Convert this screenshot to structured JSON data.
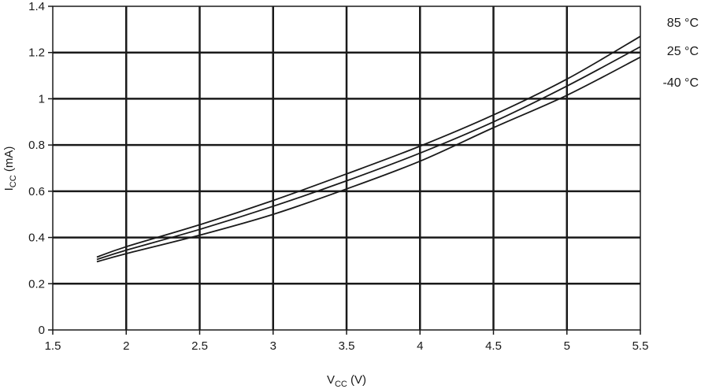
{
  "chart_data": {
    "type": "line",
    "title": "",
    "xlabel": {
      "main": "V",
      "sub": "CC",
      "unit": " (V)"
    },
    "ylabel": {
      "main": "I",
      "sub": "CC",
      "unit": " (mA)"
    },
    "xlim": [
      1.5,
      5.5
    ],
    "ylim": [
      0,
      1.4
    ],
    "xticks": [
      1.5,
      2,
      2.5,
      3,
      3.5,
      4,
      4.5,
      5,
      5.5
    ],
    "xtick_labels": [
      "1.5",
      "2",
      "2.5",
      "3",
      "3.5",
      "4",
      "4.5",
      "5",
      "5.5"
    ],
    "yticks": [
      0,
      0.2,
      0.4,
      0.6,
      0.8,
      1.0,
      1.2,
      1.4
    ],
    "ytick_labels": [
      "0",
      "0.2",
      "0.4",
      "0.6",
      "0.8",
      "1",
      "1.2",
      "1.4"
    ],
    "grid": true,
    "legend_position": "right",
    "line_color": "#1a1a1a",
    "series": [
      {
        "name": "85 °C",
        "x": [
          1.8,
          2.0,
          2.5,
          3.0,
          3.5,
          4.0,
          4.5,
          5.0,
          5.5
        ],
        "values": [
          0.315,
          0.36,
          0.455,
          0.56,
          0.675,
          0.795,
          0.93,
          1.085,
          1.27
        ]
      },
      {
        "name": "25 °C",
        "x": [
          1.8,
          2.0,
          2.5,
          3.0,
          3.5,
          4.0,
          4.5,
          5.0,
          5.5
        ],
        "values": [
          0.305,
          0.345,
          0.435,
          0.535,
          0.645,
          0.765,
          0.9,
          1.055,
          1.225
        ]
      },
      {
        "name": "-40 °C",
        "x": [
          1.8,
          2.0,
          2.5,
          3.0,
          3.5,
          4.0,
          4.5,
          5.0,
          5.5
        ],
        "values": [
          0.295,
          0.33,
          0.41,
          0.5,
          0.61,
          0.73,
          0.875,
          1.015,
          1.18
        ]
      }
    ]
  }
}
